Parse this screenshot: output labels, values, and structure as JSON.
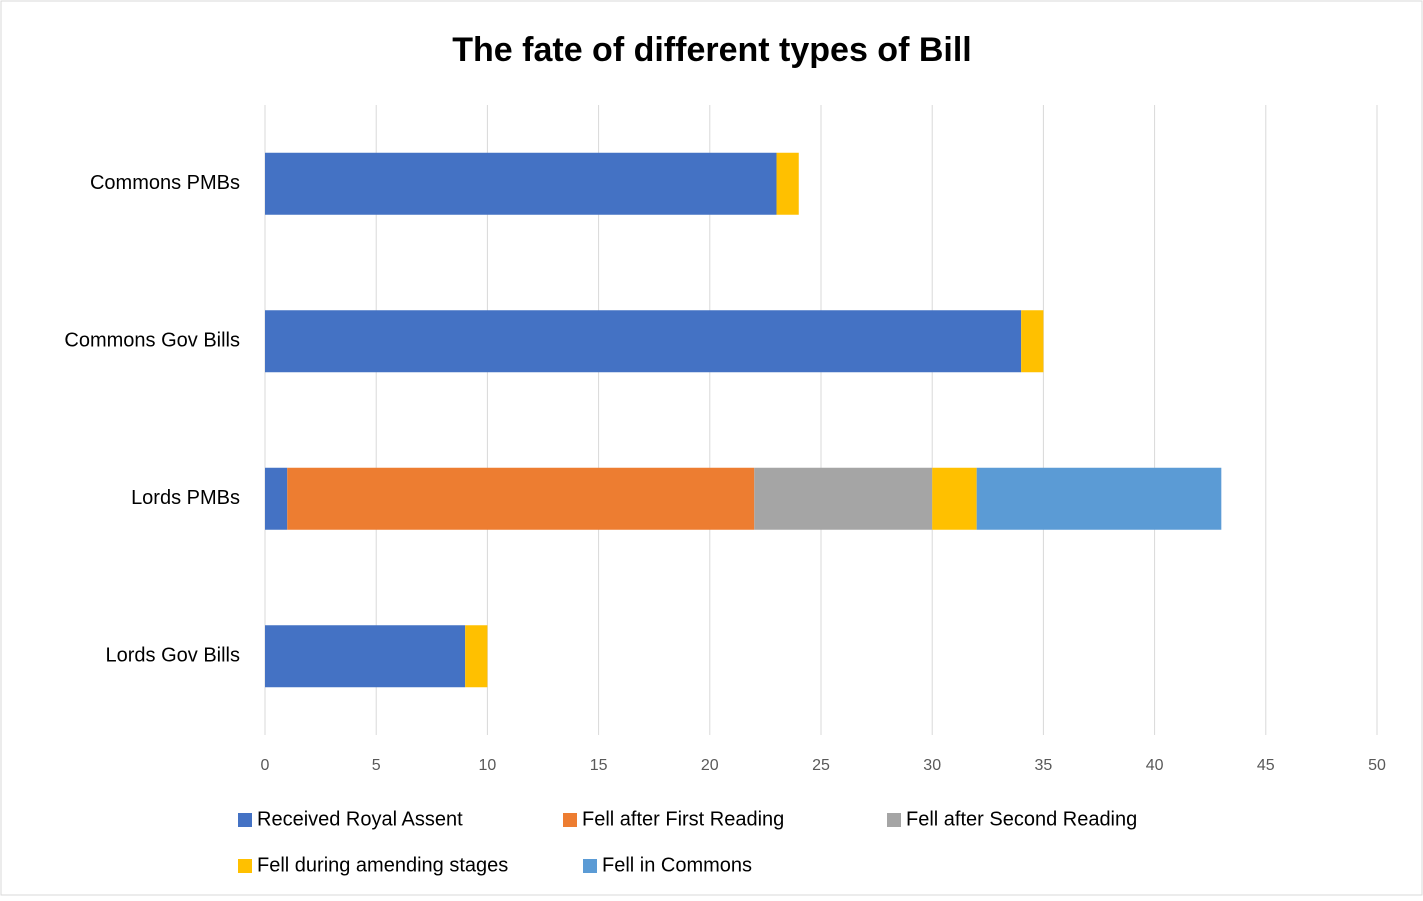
{
  "chart_data": {
    "type": "stacked-barh",
    "title": "The fate of different types of Bill",
    "categories": [
      "Commons PMBs",
      "Commons Gov Bills",
      "Lords PMBs",
      "Lords Gov Bills"
    ],
    "series": [
      {
        "name": "Received Royal Assent",
        "color": "#4472c4",
        "values": [
          23,
          34,
          1,
          9
        ]
      },
      {
        "name": "Fell after First Reading",
        "color": "#ed7d31",
        "values": [
          0,
          0,
          21,
          0
        ]
      },
      {
        "name": "Fell after Second Reading",
        "color": "#a5a5a5",
        "values": [
          0,
          0,
          8,
          0
        ]
      },
      {
        "name": "Fell during amending stages",
        "color": "#ffc000",
        "values": [
          1,
          1,
          2,
          1
        ]
      },
      {
        "name": "Fell in Commons",
        "color": "#5b9bd5",
        "values": [
          0,
          0,
          11,
          0
        ]
      }
    ],
    "xlim": [
      0,
      50
    ],
    "xticks": [
      0,
      5,
      10,
      15,
      20,
      25,
      30,
      35,
      40,
      45,
      50
    ],
    "grid": true,
    "legend": "bottom"
  }
}
